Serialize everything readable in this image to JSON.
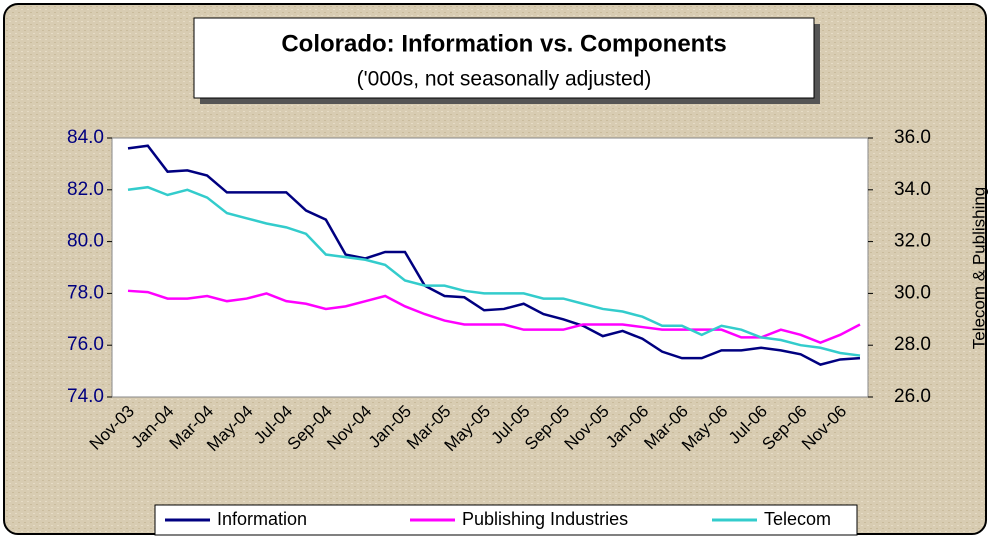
{
  "chart_data": {
    "type": "line",
    "title": "Colorado: Information vs. Components",
    "subtitle": "('000s, not seasonally adjusted)",
    "y2_label": "Telecom & Publishing",
    "categories": [
      "Nov-03",
      null,
      "Jan-04",
      null,
      "Mar-04",
      null,
      "May-04",
      null,
      "Jul-04",
      null,
      "Sep-04",
      null,
      "Nov-04",
      null,
      "Jan-05",
      null,
      "Mar-05",
      null,
      "May-05",
      null,
      "Jul-05",
      null,
      "Sep-05",
      null,
      "Nov-05",
      null,
      "Jan-06",
      null,
      "Mar-06",
      null,
      "May-06",
      null,
      "Jul-06",
      null,
      "Sep-06",
      null,
      "Nov-06",
      null
    ],
    "series": [
      {
        "name": "Information",
        "color": "#000080",
        "axis": "y",
        "values": [
          83.6,
          83.7,
          82.7,
          82.75,
          82.55,
          81.9,
          81.9,
          81.9,
          81.9,
          81.2,
          80.85,
          79.5,
          79.35,
          79.6,
          79.6,
          78.3,
          77.9,
          77.85,
          77.35,
          77.4,
          77.6,
          77.2,
          77.0,
          76.75,
          76.35,
          76.55,
          76.25,
          75.75,
          75.5,
          75.5,
          75.8,
          75.8,
          75.9,
          75.8,
          75.65,
          75.25,
          75.45,
          75.5
        ]
      },
      {
        "name": "Publishing Industries",
        "color": "#ff00ff",
        "axis": "y2",
        "values": [
          30.1,
          30.05,
          29.8,
          29.8,
          29.9,
          29.7,
          29.8,
          30.0,
          29.7,
          29.6,
          29.4,
          29.5,
          29.7,
          29.9,
          29.5,
          29.2,
          28.95,
          28.8,
          28.8,
          28.8,
          28.6,
          28.6,
          28.6,
          28.8,
          28.8,
          28.8,
          28.7,
          28.6,
          28.6,
          28.6,
          28.6,
          28.3,
          28.3,
          28.6,
          28.4,
          28.1,
          28.4,
          28.8
        ]
      },
      {
        "name": "Telecom",
        "color": "#33cccc",
        "axis": "y2",
        "values": [
          34.0,
          34.1,
          33.8,
          34.0,
          33.7,
          33.1,
          32.9,
          32.7,
          32.55,
          32.3,
          31.5,
          31.4,
          31.3,
          31.1,
          30.5,
          30.3,
          30.3,
          30.1,
          30.0,
          30.0,
          30.0,
          29.8,
          29.8,
          29.6,
          29.4,
          29.3,
          29.1,
          28.75,
          28.75,
          28.4,
          28.75,
          28.6,
          28.3,
          28.2,
          28.0,
          27.9,
          27.7,
          27.6
        ]
      }
    ],
    "ylim": [
      74,
      84
    ],
    "yticks": [
      {
        "value": 74,
        "label": "74.0"
      },
      {
        "value": 76,
        "label": "76.0"
      },
      {
        "value": 78,
        "label": "78.0"
      },
      {
        "value": 80,
        "label": "80.0"
      },
      {
        "value": 82,
        "label": "82.0"
      },
      {
        "value": 84,
        "label": "84.0"
      }
    ],
    "y2lim": [
      26,
      36
    ],
    "y2ticks": [
      {
        "value": 26,
        "label": "26.0"
      },
      {
        "value": 28,
        "label": "28.0"
      },
      {
        "value": 30,
        "label": "30.0"
      },
      {
        "value": 32,
        "label": "32.0"
      },
      {
        "value": 34,
        "label": "34.0"
      },
      {
        "value": 36,
        "label": "36.0"
      }
    ],
    "legend": "bottom"
  }
}
